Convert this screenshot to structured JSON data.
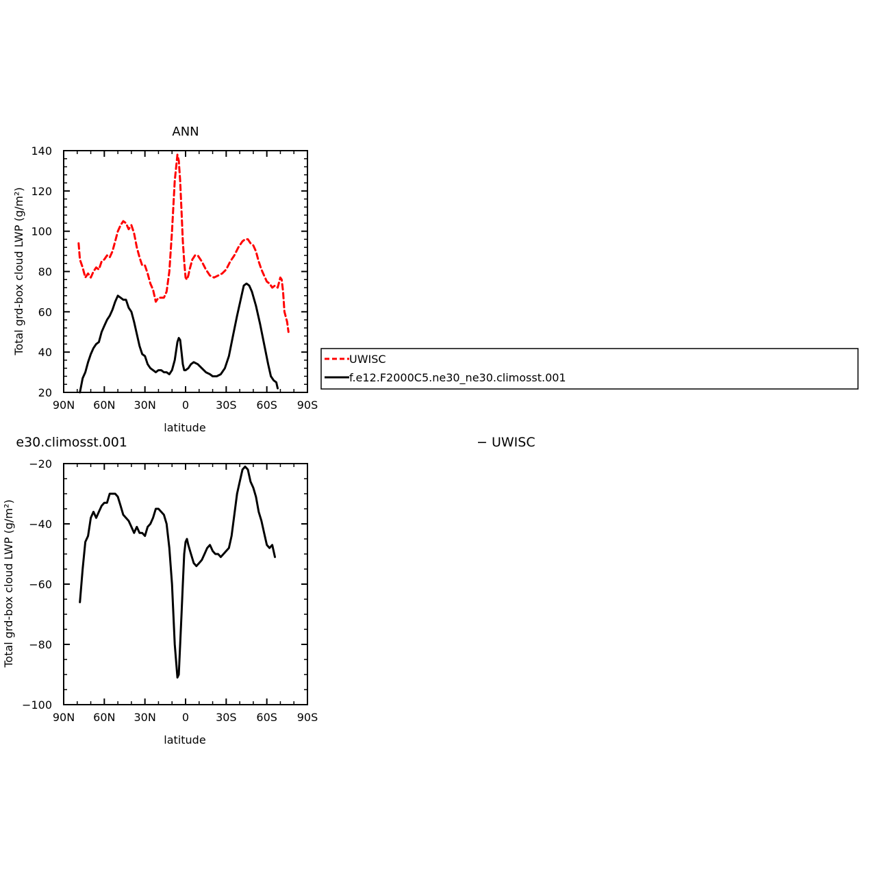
{
  "chart_data": [
    {
      "type": "line",
      "title": "ANN",
      "xlabel": "latitude",
      "ylabel": "Total grd-box cloud LWP (g/m²)",
      "xlim": [
        90,
        -90
      ],
      "ylim": [
        20,
        140
      ],
      "xticks": [
        {
          "value": 90,
          "label": "90N"
        },
        {
          "value": 60,
          "label": "60N"
        },
        {
          "value": 30,
          "label": "30N"
        },
        {
          "value": 0,
          "label": "0"
        },
        {
          "value": -30,
          "label": "30S"
        },
        {
          "value": -60,
          "label": "60S"
        },
        {
          "value": -90,
          "label": "90S"
        }
      ],
      "yticks": [
        20,
        40,
        60,
        80,
        100,
        120,
        140
      ],
      "legend_position": "right",
      "series": [
        {
          "name": "UWISC",
          "color": "#ff0000",
          "dash": "dashed",
          "points": [
            [
              79,
              94
            ],
            [
              78,
              86
            ],
            [
              76,
              82
            ],
            [
              74,
              77
            ],
            [
              72,
              79
            ],
            [
              70,
              77
            ],
            [
              68,
              80
            ],
            [
              66,
              82
            ],
            [
              64,
              81
            ],
            [
              62,
              85
            ],
            [
              60,
              86
            ],
            [
              58,
              88
            ],
            [
              56,
              87
            ],
            [
              54,
              90
            ],
            [
              52,
              95
            ],
            [
              50,
              100
            ],
            [
              48,
              103
            ],
            [
              46,
              105
            ],
            [
              44,
              104
            ],
            [
              42,
              101
            ],
            [
              40,
              103
            ],
            [
              38,
              99
            ],
            [
              36,
              92
            ],
            [
              34,
              87
            ],
            [
              32,
              83
            ],
            [
              30,
              83
            ],
            [
              28,
              79
            ],
            [
              26,
              74
            ],
            [
              24,
              71
            ],
            [
              22,
              65
            ],
            [
              20,
              67
            ],
            [
              18,
              67
            ],
            [
              16,
              67
            ],
            [
              14,
              70
            ],
            [
              12,
              80
            ],
            [
              10,
              100
            ],
            [
              8,
              125
            ],
            [
              6,
              138
            ],
            [
              5,
              135
            ],
            [
              4,
              125
            ],
            [
              3,
              110
            ],
            [
              2,
              95
            ],
            [
              1,
              85
            ],
            [
              0,
              77
            ],
            [
              -1,
              76
            ],
            [
              -2,
              78
            ],
            [
              -3,
              81
            ],
            [
              -5,
              86
            ],
            [
              -7,
              88
            ],
            [
              -9,
              88
            ],
            [
              -12,
              85
            ],
            [
              -15,
              81
            ],
            [
              -18,
              78
            ],
            [
              -21,
              77
            ],
            [
              -24,
              78
            ],
            [
              -27,
              79
            ],
            [
              -30,
              81
            ],
            [
              -33,
              85
            ],
            [
              -36,
              88
            ],
            [
              -39,
              92
            ],
            [
              -42,
              95
            ],
            [
              -44,
              96
            ],
            [
              -46,
              96
            ],
            [
              -48,
              94
            ],
            [
              -50,
              93
            ],
            [
              -52,
              90
            ],
            [
              -54,
              85
            ],
            [
              -56,
              81
            ],
            [
              -58,
              78
            ],
            [
              -60,
              75
            ],
            [
              -62,
              74
            ],
            [
              -64,
              72
            ],
            [
              -66,
              73
            ],
            [
              -68,
              72
            ],
            [
              -70,
              77
            ],
            [
              -71,
              76
            ],
            [
              -72,
              70
            ],
            [
              -73,
              60
            ],
            [
              -75,
              55
            ],
            [
              -76,
              50
            ]
          ]
        },
        {
          "name": "f.e12.F2000C5.ne30_ne30.climosst.001",
          "color": "#000000",
          "dash": "solid",
          "points": [
            [
              78,
              20
            ],
            [
              76,
              27
            ],
            [
              74,
              30
            ],
            [
              72,
              35
            ],
            [
              70,
              39
            ],
            [
              68,
              42
            ],
            [
              66,
              44
            ],
            [
              64,
              45
            ],
            [
              62,
              50
            ],
            [
              60,
              53
            ],
            [
              58,
              56
            ],
            [
              56,
              58
            ],
            [
              54,
              61
            ],
            [
              52,
              65
            ],
            [
              50,
              68
            ],
            [
              48,
              67
            ],
            [
              46,
              66
            ],
            [
              44,
              66
            ],
            [
              42,
              62
            ],
            [
              40,
              60
            ],
            [
              38,
              55
            ],
            [
              36,
              49
            ],
            [
              34,
              43
            ],
            [
              32,
              39
            ],
            [
              30,
              38
            ],
            [
              28,
              34
            ],
            [
              26,
              32
            ],
            [
              24,
              31
            ],
            [
              22,
              30
            ],
            [
              20,
              31
            ],
            [
              18,
              31
            ],
            [
              16,
              30
            ],
            [
              14,
              30
            ],
            [
              12,
              29
            ],
            [
              10,
              31
            ],
            [
              8,
              36
            ],
            [
              6,
              45
            ],
            [
              5,
              47
            ],
            [
              4,
              46
            ],
            [
              3,
              40
            ],
            [
              2,
              34
            ],
            [
              1,
              31
            ],
            [
              0,
              31
            ],
            [
              -2,
              32
            ],
            [
              -4,
              34
            ],
            [
              -6,
              35
            ],
            [
              -9,
              34
            ],
            [
              -12,
              32
            ],
            [
              -15,
              30
            ],
            [
              -18,
              29
            ],
            [
              -20,
              28
            ],
            [
              -23,
              28
            ],
            [
              -26,
              29
            ],
            [
              -29,
              32
            ],
            [
              -32,
              38
            ],
            [
              -35,
              48
            ],
            [
              -38,
              58
            ],
            [
              -41,
              67
            ],
            [
              -43,
              73
            ],
            [
              -45,
              74
            ],
            [
              -47,
              73
            ],
            [
              -49,
              70
            ],
            [
              -52,
              63
            ],
            [
              -55,
              54
            ],
            [
              -58,
              44
            ],
            [
              -61,
              34
            ],
            [
              -63,
              28
            ],
            [
              -65,
              26
            ],
            [
              -67,
              25
            ],
            [
              -68,
              22
            ]
          ]
        }
      ],
      "legend_entries": [
        "UWISC",
        "f.e12.F2000C5.ne30_ne30.climosst.001"
      ]
    },
    {
      "type": "line",
      "title": "e30.climosst.001",
      "title_right": "− UWISC",
      "xlabel": "latitude",
      "ylabel": "Total grd-box cloud LWP (g/m²)",
      "xlim": [
        90,
        -90
      ],
      "ylim": [
        -100,
        -20
      ],
      "xticks": [
        {
          "value": 90,
          "label": "90N"
        },
        {
          "value": 60,
          "label": "60N"
        },
        {
          "value": 30,
          "label": "30N"
        },
        {
          "value": 0,
          "label": "0"
        },
        {
          "value": -30,
          "label": "30S"
        },
        {
          "value": -60,
          "label": "60S"
        },
        {
          "value": -90,
          "label": "90S"
        }
      ],
      "yticks": [
        -20,
        -40,
        -60,
        -80,
        -100
      ],
      "series": [
        {
          "color": "#000000",
          "dash": "solid",
          "points": [
            [
              78,
              -66
            ],
            [
              76,
              -55
            ],
            [
              74,
              -46
            ],
            [
              72,
              -44
            ],
            [
              70,
              -38
            ],
            [
              68,
              -36
            ],
            [
              66,
              -38
            ],
            [
              64,
              -36
            ],
            [
              62,
              -34
            ],
            [
              60,
              -33
            ],
            [
              58,
              -33
            ],
            [
              56,
              -30
            ],
            [
              54,
              -30
            ],
            [
              52,
              -30
            ],
            [
              50,
              -31
            ],
            [
              48,
              -34
            ],
            [
              46,
              -37
            ],
            [
              44,
              -38
            ],
            [
              42,
              -39
            ],
            [
              40,
              -41
            ],
            [
              38,
              -43
            ],
            [
              36,
              -41
            ],
            [
              34,
              -43
            ],
            [
              32,
              -43
            ],
            [
              30,
              -44
            ],
            [
              28,
              -41
            ],
            [
              26,
              -40
            ],
            [
              24,
              -38
            ],
            [
              22,
              -35
            ],
            [
              20,
              -35
            ],
            [
              18,
              -36
            ],
            [
              16,
              -37
            ],
            [
              14,
              -40
            ],
            [
              12,
              -48
            ],
            [
              10,
              -60
            ],
            [
              8,
              -80
            ],
            [
              6,
              -91
            ],
            [
              5,
              -90
            ],
            [
              4,
              -80
            ],
            [
              3,
              -70
            ],
            [
              2,
              -60
            ],
            [
              1,
              -50
            ],
            [
              0,
              -46
            ],
            [
              -1,
              -45
            ],
            [
              -2,
              -47
            ],
            [
              -4,
              -50
            ],
            [
              -6,
              -53
            ],
            [
              -8,
              -54
            ],
            [
              -10,
              -53
            ],
            [
              -12,
              -52
            ],
            [
              -14,
              -50
            ],
            [
              -16,
              -48
            ],
            [
              -18,
              -47
            ],
            [
              -20,
              -49
            ],
            [
              -22,
              -50
            ],
            [
              -24,
              -50
            ],
            [
              -26,
              -51
            ],
            [
              -28,
              -50
            ],
            [
              -30,
              -49
            ],
            [
              -32,
              -48
            ],
            [
              -34,
              -44
            ],
            [
              -36,
              -37
            ],
            [
              -38,
              -30
            ],
            [
              -40,
              -26
            ],
            [
              -42,
              -22
            ],
            [
              -44,
              -21
            ],
            [
              -46,
              -22
            ],
            [
              -48,
              -26
            ],
            [
              -50,
              -28
            ],
            [
              -52,
              -31
            ],
            [
              -54,
              -36
            ],
            [
              -56,
              -39
            ],
            [
              -58,
              -43
            ],
            [
              -60,
              -47
            ],
            [
              -62,
              -48
            ],
            [
              -64,
              -47
            ],
            [
              -66,
              -51
            ]
          ]
        }
      ]
    }
  ]
}
